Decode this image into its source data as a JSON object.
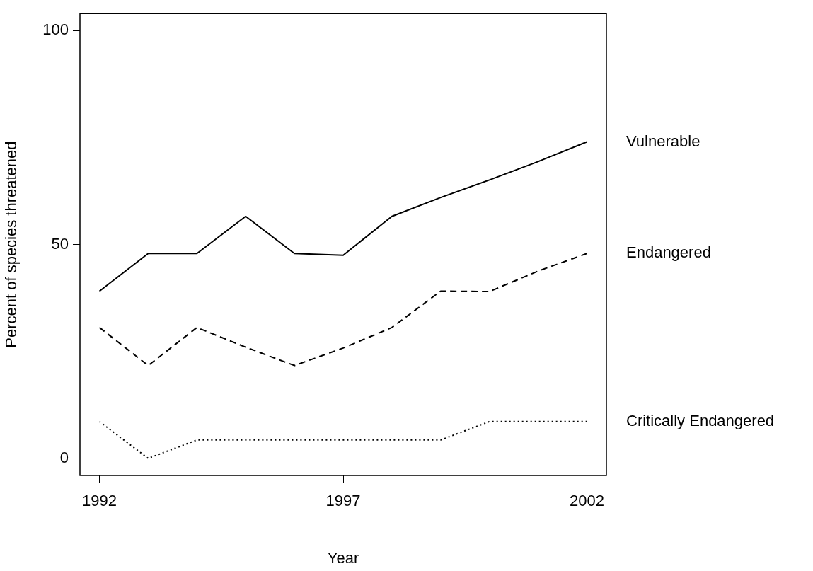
{
  "chart_data": {
    "type": "line",
    "xlabel": "Year",
    "ylabel": "Percent of species threatened",
    "x": [
      1992,
      1993,
      1994,
      1995,
      1996,
      1997,
      1998,
      1999,
      2000,
      2001,
      2002
    ],
    "series": [
      {
        "name": "Vulnerable",
        "color": "#000000",
        "line_style": "solid",
        "values": [
          39.1,
          47.9,
          47.9,
          56.6,
          47.9,
          47.5,
          56.6,
          61,
          65.1,
          69.4,
          74
        ]
      },
      {
        "name": "Endangered",
        "color": "#000000",
        "line_style": "dashed",
        "values": [
          30.6,
          21.7,
          30.6,
          26,
          21.7,
          25.8,
          30.6,
          39.1,
          39,
          43.8,
          47.9
        ]
      },
      {
        "name": "Critically Endangered",
        "color": "#000000",
        "line_style": "dotted",
        "values": [
          8.6,
          0,
          4.3,
          4.3,
          4.3,
          4.3,
          4.3,
          4.3,
          8.6,
          8.6,
          8.6
        ]
      }
    ],
    "xlim": [
      1991.6,
      2002.4
    ],
    "xticks": [
      1992,
      1997,
      2002
    ],
    "ylim": [
      -4,
      104
    ],
    "yticks": [
      0,
      50,
      100
    ],
    "grid": false,
    "legend": false,
    "marker": "none"
  }
}
